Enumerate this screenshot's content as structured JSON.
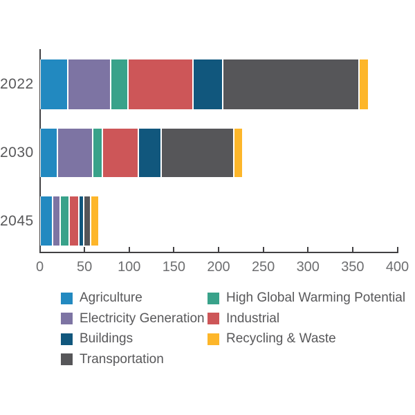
{
  "chart_data": {
    "type": "bar",
    "orientation": "horizontal",
    "stacked": true,
    "title": "",
    "xlabel": "",
    "ylabel": "",
    "categories": [
      "2022",
      "2030",
      "2045"
    ],
    "series": [
      {
        "name": "Agriculture",
        "color": "#2289c0",
        "values": [
          31,
          20,
          14
        ]
      },
      {
        "name": "Electricity Generation",
        "color": "#7d74a3",
        "values": [
          48,
          39,
          9
        ]
      },
      {
        "name": "High Global Warming Potential",
        "color": "#39a28a",
        "values": [
          20,
          11,
          10
        ]
      },
      {
        "name": "Industrial",
        "color": "#cd5658",
        "values": [
          72,
          40,
          11
        ]
      },
      {
        "name": "Buildings",
        "color": "#11577d",
        "values": [
          34,
          26,
          5
        ]
      },
      {
        "name": "Transportation",
        "color": "#565659",
        "values": [
          152,
          81,
          8
        ]
      },
      {
        "name": "Recycling & Waste",
        "color": "#fdb62a",
        "values": [
          11,
          10,
          9
        ]
      }
    ],
    "totals": [
      368,
      227,
      66
    ],
    "x_axis": {
      "min": 0,
      "max": 400,
      "tick_interval": 50,
      "tick_labels": [
        "0",
        "50",
        "100",
        "150",
        "200",
        "250",
        "300",
        "350",
        "400"
      ]
    },
    "grid": false,
    "legend_position": "bottom",
    "legend_columns": [
      [
        "Agriculture",
        "Electricity Generation",
        "Buildings",
        "Transportation"
      ],
      [
        "High Global Warming Potential",
        "Industrial",
        "Recycling & Waste"
      ]
    ]
  },
  "colors": {
    "axis": "#414042",
    "tick_label": "#6d6e70",
    "year_label": "#58585a",
    "legend_text": "#58585a",
    "background": "#ffffff"
  }
}
